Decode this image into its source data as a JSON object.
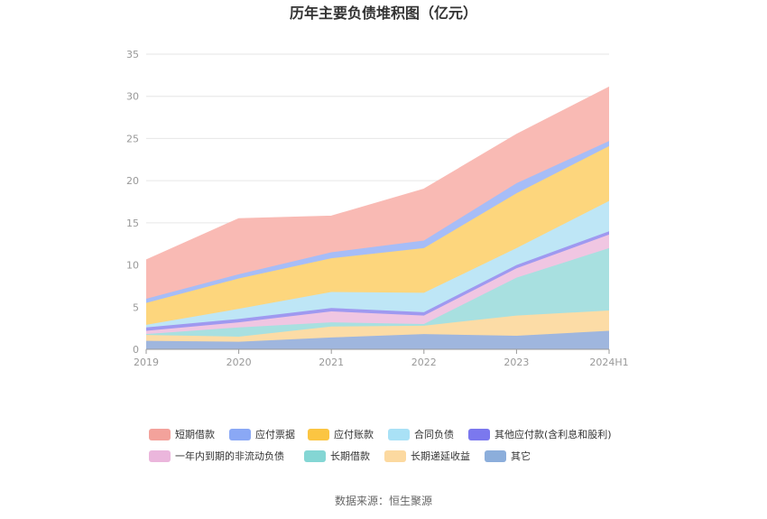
{
  "source": "数据来源：恒生聚源",
  "chart_data": {
    "type": "area",
    "stacked": true,
    "title": "历年主要负债堆积图（亿元）",
    "x": [
      "2019",
      "2020",
      "2021",
      "2022",
      "2023",
      "2024H1"
    ],
    "ylim": [
      0,
      35
    ],
    "yticks": [
      0,
      5,
      10,
      15,
      20,
      25,
      30,
      35
    ],
    "grid": true,
    "legend_position": "bottom",
    "series": [
      {
        "name": "其它",
        "color": "#9fb6de",
        "values": [
          1.0,
          0.9,
          1.4,
          1.8,
          1.6,
          2.2
        ]
      },
      {
        "name": "长期递延收益",
        "color": "#fcdca6",
        "values": [
          0.7,
          0.6,
          1.3,
          1.0,
          2.4,
          2.4
        ]
      },
      {
        "name": "长期借款",
        "color": "#a8e0e0",
        "values": [
          0.1,
          1.1,
          0.5,
          0.2,
          4.5,
          7.4
        ]
      },
      {
        "name": "一年内到期的非流动负债",
        "color": "#f0c6e2",
        "values": [
          0.4,
          0.6,
          1.3,
          1.0,
          1.1,
          1.6
        ]
      },
      {
        "name": "其他应付款(含利息和股利)",
        "color": "#9f99f0",
        "values": [
          0.4,
          0.4,
          0.4,
          0.4,
          0.4,
          0.4
        ]
      },
      {
        "name": "合同负债",
        "color": "#bee6f6",
        "values": [
          0.3,
          1.2,
          1.9,
          2.3,
          2.0,
          3.6
        ]
      },
      {
        "name": "应付账款",
        "color": "#fdd67d",
        "values": [
          2.6,
          3.6,
          4.0,
          5.3,
          6.5,
          6.5
        ]
      },
      {
        "name": "应付票据",
        "color": "#a6bdf7",
        "values": [
          0.5,
          0.5,
          0.7,
          0.9,
          1.2,
          0.6
        ]
      },
      {
        "name": "短期借款",
        "color": "#f9bab4",
        "values": [
          4.6,
          6.6,
          4.3,
          6.1,
          5.8,
          6.4
        ]
      }
    ],
    "legend": [
      {
        "name": "短期借款",
        "color": "#f3a29b"
      },
      {
        "name": "应付票据",
        "color": "#8aa8f5"
      },
      {
        "name": "应付账款",
        "color": "#fbc542"
      },
      {
        "name": "合同负债",
        "color": "#a9e1f6"
      },
      {
        "name": "其他应付款(含利息和股利)",
        "color": "#7b78ee"
      },
      {
        "name": "一年内到期的非流动负债",
        "color": "#ebb6dc"
      },
      {
        "name": "长期借款",
        "color": "#84d6d4"
      },
      {
        "name": "长期递延收益",
        "color": "#fcd9a0"
      },
      {
        "name": "其它",
        "color": "#8caedb"
      }
    ]
  }
}
